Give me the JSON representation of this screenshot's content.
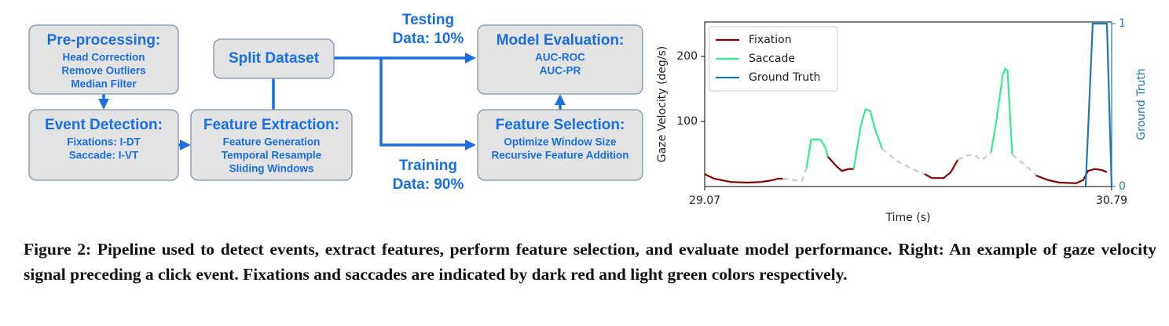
{
  "diagram": {
    "nodes": [
      {
        "title": "Pre-processing:",
        "lines": [
          "Head Correction",
          "Remove Outliers",
          "Median Filter"
        ]
      },
      {
        "title": "Event Detection:",
        "lines": [
          "Fixations: I-DT",
          "Saccade: I-VT"
        ]
      },
      {
        "title": "Feature Extraction:",
        "lines": [
          "Feature Generation",
          "Temporal Resample",
          "Sliding Windows"
        ]
      },
      {
        "title": "Split Dataset",
        "lines": []
      },
      {
        "title": "Model Evaluation:",
        "lines": [
          "AUC-ROC",
          "AUC-PR"
        ]
      },
      {
        "title": "Feature Selection:",
        "lines": [
          "Optimize Window Size",
          "Recursive Feature Addition"
        ]
      }
    ],
    "edge_labels": [
      {
        "lines": [
          "Testing",
          "Data: 10%"
        ]
      },
      {
        "lines": [
          "Training",
          "Data: 90%"
        ]
      }
    ]
  },
  "chart_data": {
    "type": "line",
    "xlabel": "Time (s)",
    "ylabel": "Gaze Velocity (deg/s)",
    "y2label": "Ground Truth",
    "xlim": [
      29.07,
      30.79
    ],
    "xticks": [
      29.07,
      30.79
    ],
    "ylim": [
      0,
      253
    ],
    "yticks": [
      100,
      200
    ],
    "y2lim": [
      0,
      1.01
    ],
    "y2ticks": [
      0,
      1
    ],
    "legend": "upper left",
    "series": [
      {
        "name": "Fixation",
        "color": "#7f0000",
        "x": [
          29.07,
          29.11,
          29.18,
          29.25,
          29.31,
          29.36,
          29.38,
          29.4,
          29.45,
          29.59,
          29.63,
          29.65,
          29.68,
          29.7,
          29.85,
          30.0,
          30.03,
          30.08,
          30.11,
          30.14,
          30.3,
          30.47,
          30.52,
          30.57,
          30.64,
          30.67,
          30.69,
          30.72,
          30.75,
          30.77
        ],
        "values": [
          19,
          12,
          7,
          6,
          7,
          10,
          12,
          12,
          null,
          46,
          30,
          24,
          27,
          27,
          null,
          19,
          13,
          13,
          22,
          41,
          null,
          17,
          10,
          6,
          5,
          10,
          24,
          27,
          25,
          22
        ]
      },
      {
        "name": "Saccade",
        "color": "#33ee88",
        "x": [
          29.5,
          29.52,
          29.56,
          29.58,
          29.59,
          29.65,
          29.7,
          29.73,
          29.75,
          29.77,
          29.79,
          29.82,
          30.0,
          30.28,
          30.3,
          30.33,
          30.34,
          30.35,
          30.37
        ],
        "values": [
          28,
          72,
          72,
          60,
          46,
          null,
          27,
          94,
          119,
          116,
          88,
          58,
          null,
          52,
          94,
          172,
          181,
          178,
          49
        ]
      },
      {
        "color": "#cccccc",
        "dashed": true,
        "x": [
          29.4,
          29.45,
          29.48,
          29.5,
          29.6,
          29.82,
          29.88,
          29.94,
          30.0,
          30.08,
          30.14,
          30.18,
          30.21,
          30.24,
          30.28,
          30.32,
          30.37,
          30.4,
          30.44,
          30.47
        ],
        "values": [
          12,
          10,
          8,
          28,
          null,
          58,
          40,
          28,
          19,
          null,
          41,
          48,
          49,
          40,
          52,
          null,
          49,
          40,
          28,
          17
        ]
      },
      {
        "name": "Ground Truth",
        "color": "#1f77b4",
        "axis": "y2",
        "x": [
          30.68,
          30.71,
          30.77,
          30.79
        ],
        "values": [
          0,
          1,
          1,
          0
        ]
      }
    ]
  },
  "caption": "Figure 2: Pipeline used to detect events, extract features, perform feature selection, and evaluate model performance. Right: An example of gaze velocity signal preceding a click event. Fixations and saccades are indicated by dark red and light green colors respectively."
}
